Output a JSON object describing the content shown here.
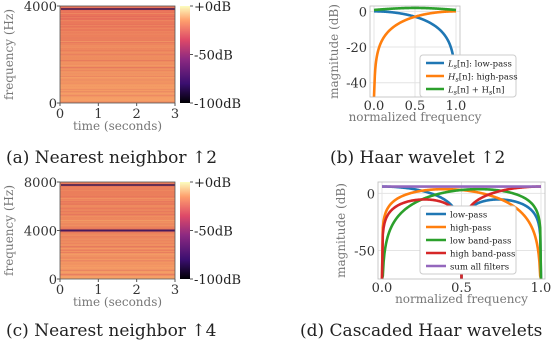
{
  "captions": {
    "a": "(a) Nearest neighbor ↑2",
    "b": "(b) Haar wavelet ↑2",
    "c": "(c) Nearest neighbor ↑4",
    "d": "(d) Cascaded Haar wavelets"
  },
  "colors": {
    "blue": "#1f77b4",
    "orange": "#ff7f0e",
    "green": "#2ca02c",
    "red": "#d62728",
    "purple": "#9467bd",
    "spec_hot": "#f7a35c",
    "spec_mid": "#e8605a",
    "spec_dark": "#1a0a36"
  },
  "chart_data": [
    {
      "id": "a",
      "type": "heatmap",
      "title": "",
      "xlabel": "time (seconds)",
      "ylabel": "frequency (Hz)",
      "xlim": [
        0,
        3
      ],
      "ylim": [
        0,
        4000
      ],
      "xticks": [
        "0",
        "1",
        "2",
        "3"
      ],
      "yticks": [
        "0",
        "4000"
      ],
      "colorbar": {
        "ticks": [
          "+0dB",
          "-50dB",
          "-100dB"
        ],
        "range": [
          -100,
          0
        ]
      }
    },
    {
      "id": "b",
      "type": "line",
      "title": "",
      "xlabel": "normalized frequency",
      "ylabel": "magnitude (dB)",
      "xlim": [
        0,
        1
      ],
      "ylim": [
        -48,
        3
      ],
      "xticks": [
        "0.0",
        "0.5",
        "1.0"
      ],
      "yticks": [
        "0",
        "-20",
        "-40"
      ],
      "legend_position": "lower-center",
      "series": [
        {
          "name": "L_s[n]: low-pass",
          "legend_main": "L",
          "legend_sub": "s",
          "legend_rest": "[n]: low-pass",
          "color": "blue",
          "kind": "low"
        },
        {
          "name": "H_s[n]: high-pass",
          "legend_main": "H",
          "legend_sub": "s",
          "legend_rest": "[n]: high-pass",
          "color": "orange",
          "kind": "high"
        },
        {
          "name": "L_s[n] + H_s[n]",
          "legend_main": "L",
          "legend_sub": "s",
          "legend_rest": "[n] + H",
          "legend_sub2": "s",
          "legend_rest2": "[n]",
          "color": "green",
          "kind": "sum"
        }
      ]
    },
    {
      "id": "c",
      "type": "heatmap",
      "title": "",
      "xlabel": "time (seconds)",
      "ylabel": "frequency (Hz)",
      "xlim": [
        0,
        3
      ],
      "ylim": [
        0,
        8000
      ],
      "xticks": [
        "0",
        "1",
        "2",
        "3"
      ],
      "yticks": [
        "0",
        "4000",
        "8000"
      ],
      "colorbar": {
        "ticks": [
          "+0dB",
          "-50dB",
          "-100dB"
        ],
        "range": [
          -100,
          0
        ]
      },
      "artifact_line_hz": 4000
    },
    {
      "id": "d",
      "type": "line",
      "title": "",
      "xlabel": "normalized frequency",
      "ylabel": "magnitude (dB)",
      "xlim": [
        0,
        1
      ],
      "ylim": [
        -75,
        10
      ],
      "xticks": [
        "0.0",
        "0.5",
        "1.0"
      ],
      "yticks": [
        "0",
        "-50"
      ],
      "legend_position": "center",
      "series": [
        {
          "name": "low-pass",
          "color": "blue",
          "kind": "ll"
        },
        {
          "name": "high-pass",
          "color": "orange",
          "kind": "lh"
        },
        {
          "name": "low band-pass",
          "color": "green",
          "kind": "hl"
        },
        {
          "name": "high band-pass",
          "color": "red",
          "kind": "hh"
        },
        {
          "name": "sum all filters",
          "color": "purple",
          "kind": "flat"
        }
      ]
    }
  ]
}
